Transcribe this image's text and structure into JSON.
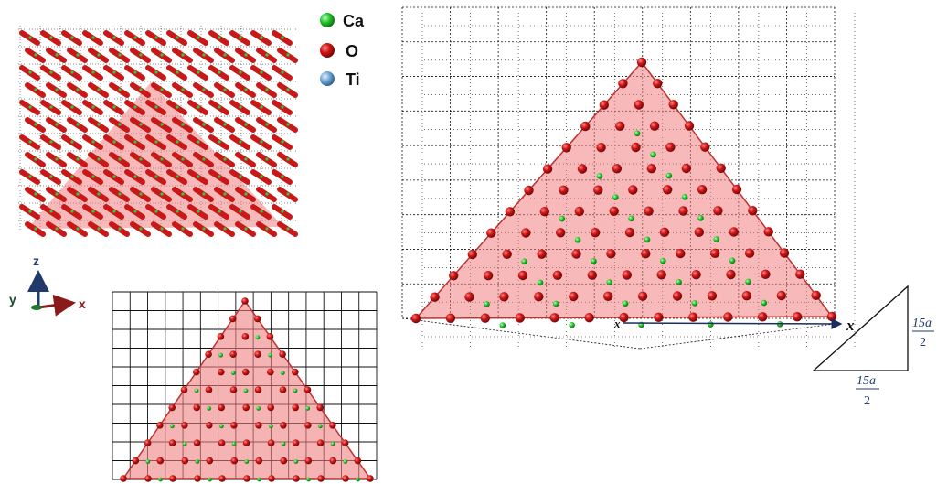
{
  "legend": {
    "items": [
      {
        "label": "Ca",
        "color": "#1fbf2a"
      },
      {
        "label": "O",
        "color": "#cc1414"
      },
      {
        "label": "Ti",
        "color": "#5a93c4"
      }
    ]
  },
  "axes_triad": {
    "z": "z",
    "y": "y",
    "x": "x"
  },
  "main_view": {
    "axis_label": "x",
    "axis_label_near": "x"
  },
  "right_triangle": {
    "vertical_leg": {
      "numerator": "15a",
      "denominator": "2"
    },
    "horizontal_leg": {
      "numerator": "15a",
      "denominator": "2"
    }
  },
  "colors": {
    "plane_fill": "#f08080",
    "oxygen": "#cc1414",
    "calcium": "#1fbf2a",
    "titanium": "#5a93c4",
    "grid": "#111111",
    "axis_blue": "#1f3a6b",
    "axis_red": "#8b1a1a"
  }
}
